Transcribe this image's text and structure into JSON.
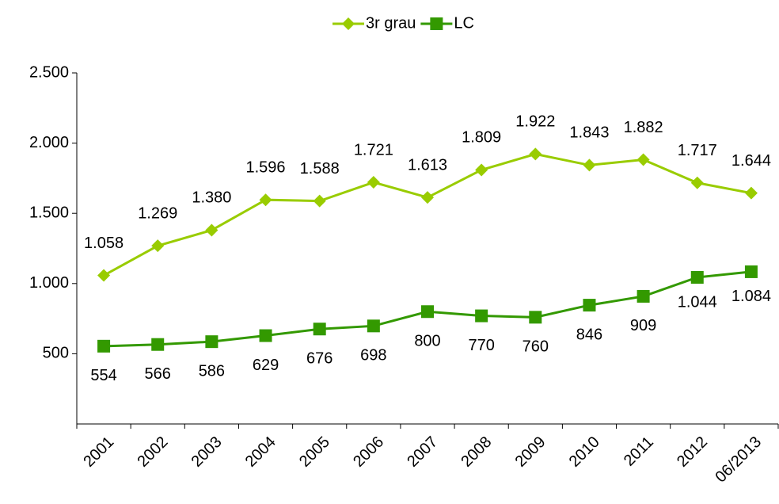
{
  "chart_data": {
    "type": "line",
    "categories": [
      "2001",
      "2002",
      "2003",
      "2004",
      "2005",
      "2006",
      "2007",
      "2008",
      "2009",
      "2010",
      "2011",
      "2012",
      "06/2013"
    ],
    "series": [
      {
        "name": "3r grau",
        "color": "#99cc00",
        "marker": "diamond",
        "values": [
          1058,
          1269,
          1380,
          1596,
          1588,
          1721,
          1613,
          1809,
          1922,
          1843,
          1882,
          1717,
          1644
        ],
        "value_labels": [
          "1.058",
          "1.269",
          "1.380",
          "1.596",
          "1.588",
          "1.721",
          "1.613",
          "1.809",
          "1.922",
          "1.843",
          "1.882",
          "1.717",
          "1.644"
        ]
      },
      {
        "name": "LC",
        "color": "#339900",
        "marker": "square",
        "values": [
          554,
          566,
          586,
          629,
          676,
          698,
          800,
          770,
          760,
          846,
          909,
          1044,
          1084
        ],
        "value_labels": [
          "554",
          "566",
          "586",
          "629",
          "676",
          "698",
          "800",
          "770",
          "760",
          "846",
          "909",
          "1.044",
          "1.084"
        ]
      }
    ],
    "ylim": [
      0,
      2500
    ],
    "yticks": [
      500,
      {
        "value": 1000,
        "label": "1.000"
      },
      {
        "value": 1500,
        "label": "1.500"
      },
      {
        "value": 2000,
        "label": "2.000"
      },
      {
        "value": 2500,
        "label": "2.500"
      }
    ],
    "legend": "top",
    "grid": false
  }
}
